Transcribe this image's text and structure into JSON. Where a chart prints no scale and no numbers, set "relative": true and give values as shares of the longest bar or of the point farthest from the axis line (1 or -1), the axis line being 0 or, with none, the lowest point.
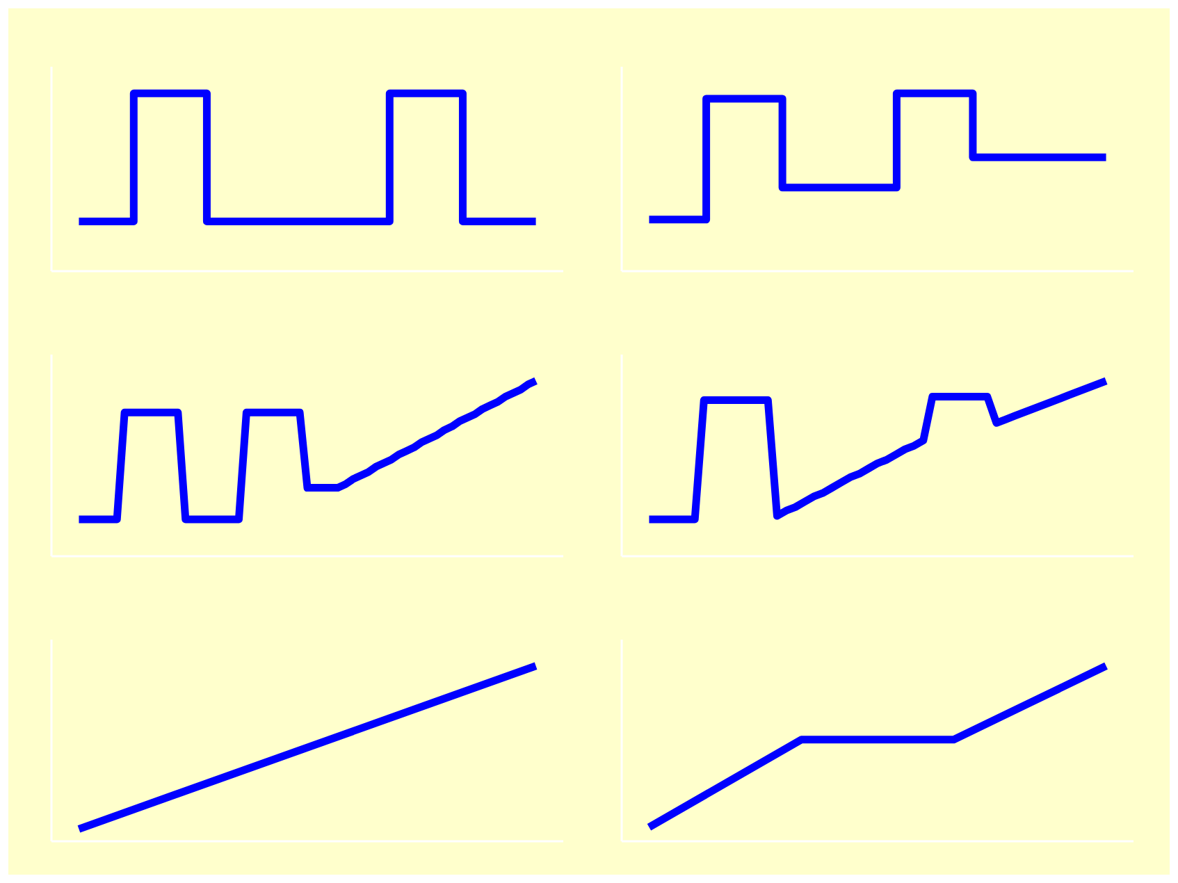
{
  "chart_data": [
    {
      "type": "step",
      "relative": true,
      "color": "#0000ff",
      "categories": [
        null,
        null,
        null,
        null,
        null,
        null,
        null,
        null,
        null,
        null,
        null,
        null,
        null,
        null,
        null,
        null,
        null,
        null,
        null,
        null,
        null,
        null,
        null,
        null,
        null,
        null
      ],
      "values": [
        0.28,
        0.28,
        0.28,
        1,
        1,
        1,
        1,
        0.28,
        0.28,
        0.28,
        0.28,
        0.28,
        0.28,
        0.28,
        0.28,
        0.28,
        0.28,
        1,
        1,
        1,
        1,
        0.28,
        0.28,
        0.28,
        0.28,
        0.28
      ]
    },
    {
      "type": "step",
      "relative": true,
      "color": "#0000ff",
      "categories": [
        null,
        null,
        null,
        null,
        null,
        null,
        null,
        null,
        null,
        null,
        null,
        null,
        null,
        null,
        null,
        null,
        null,
        null,
        null,
        null,
        null,
        null,
        null,
        null,
        null
      ],
      "values": [
        0.29,
        0.29,
        0.29,
        0.97,
        0.97,
        0.97,
        0.97,
        0.47,
        0.47,
        0.47,
        0.47,
        0.47,
        0.47,
        1,
        1,
        1,
        1,
        0.64,
        0.64,
        0.64,
        0.64,
        0.64,
        0.64,
        0.64,
        0.64
      ]
    },
    {
      "type": "line",
      "relative": true,
      "color": "#0000ff",
      "categories": [
        null,
        null,
        null,
        null,
        null,
        null,
        null,
        null,
        null,
        null,
        null,
        null,
        null,
        null,
        null,
        null,
        null,
        null,
        null,
        null,
        null,
        null,
        null,
        null,
        null,
        null,
        null,
        null,
        null,
        null,
        null,
        null,
        null,
        null,
        null,
        null,
        null,
        null,
        null,
        null,
        null,
        null,
        null,
        null,
        null,
        null,
        null,
        null,
        null,
        null,
        null,
        null,
        null,
        null,
        null,
        null,
        null,
        null,
        null,
        null,
        null
      ],
      "values": [
        0.21,
        0.21,
        0.21,
        0.21,
        0.21,
        0.21,
        0.82,
        0.82,
        0.82,
        0.82,
        0.82,
        0.82,
        0.82,
        0.82,
        0.21,
        0.21,
        0.21,
        0.21,
        0.21,
        0.21,
        0.21,
        0.21,
        0.82,
        0.82,
        0.82,
        0.82,
        0.82,
        0.82,
        0.82,
        0.82,
        0.39,
        0.39,
        0.39,
        0.39,
        0.39,
        0.41,
        0.44,
        0.46,
        0.48,
        0.51,
        0.53,
        0.55,
        0.58,
        0.6,
        0.62,
        0.65,
        0.67,
        0.69,
        0.72,
        0.74,
        0.77,
        0.79,
        0.81,
        0.84,
        0.86,
        0.88,
        0.91,
        0.93,
        0.95,
        0.98,
        1
      ]
    },
    {
      "type": "line",
      "relative": true,
      "color": "#0000ff",
      "categories": [
        null,
        null,
        null,
        null,
        null,
        null,
        null,
        null,
        null,
        null,
        null,
        null,
        null,
        null,
        null,
        null,
        null,
        null,
        null,
        null,
        null,
        null,
        null,
        null,
        null,
        null,
        null,
        null,
        null,
        null,
        null,
        null,
        null,
        null,
        null,
        null,
        null,
        null,
        null,
        null,
        null,
        null,
        null,
        null,
        null,
        null,
        null,
        null,
        null,
        null,
        null
      ],
      "values": [
        0.21,
        0.21,
        0.21,
        0.21,
        0.21,
        0.21,
        0.89,
        0.89,
        0.89,
        0.89,
        0.89,
        0.89,
        0.89,
        0.89,
        0.23,
        0.26,
        0.28,
        0.31,
        0.34,
        0.36,
        0.39,
        0.42,
        0.45,
        0.47,
        0.5,
        0.53,
        0.55,
        0.58,
        0.61,
        0.63,
        0.66,
        0.91,
        0.91,
        0.91,
        0.91,
        0.91,
        0.91,
        0.91,
        0.76,
        0.78,
        0.8,
        0.82,
        0.84,
        0.86,
        0.88,
        0.9,
        0.92,
        0.94,
        0.96,
        0.98,
        1
      ]
    },
    {
      "type": "line",
      "relative": true,
      "color": "#0000ff",
      "categories": [
        null,
        null
      ],
      "values": [
        0.07,
        1
      ]
    },
    {
      "type": "line",
      "relative": true,
      "color": "#0000ff",
      "categories": [
        null,
        null,
        null,
        null
      ],
      "values": [
        0.08,
        0.58,
        0.58,
        1
      ]
    }
  ]
}
